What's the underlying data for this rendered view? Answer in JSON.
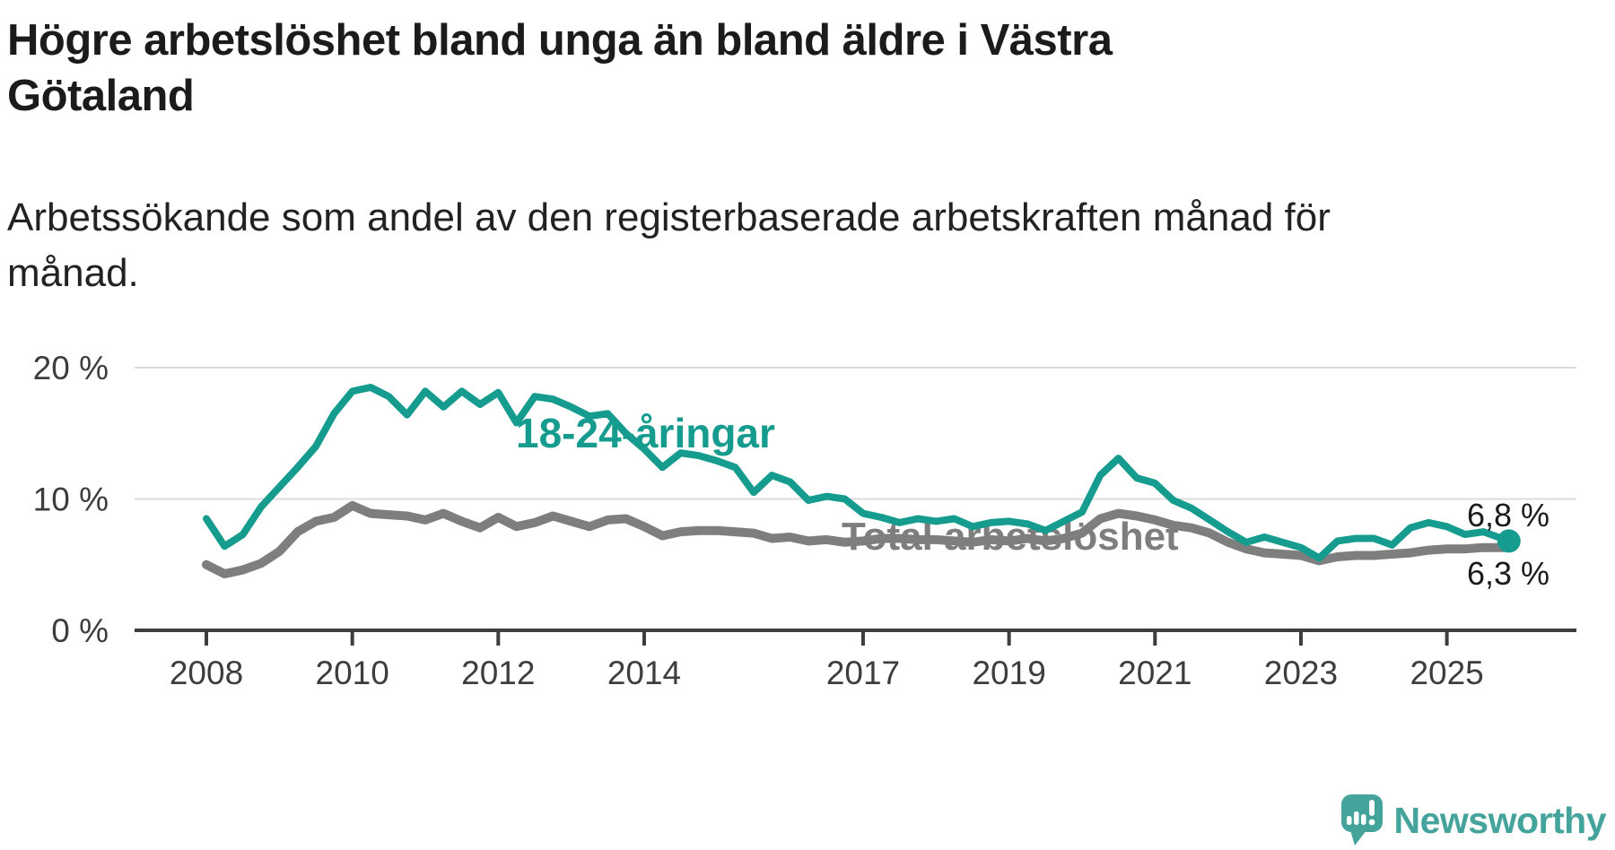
{
  "header": {
    "title": "Högre arbetslöshet bland unga än bland äldre i Västra Götaland",
    "subtitle": "Arbetssökande som andel av den registerbaserade arbetskraften månad för månad."
  },
  "chart_data": {
    "type": "line",
    "unit": "percent of registered labour force",
    "grid": "horizontal-only",
    "legend": "inline-labels",
    "x_range": [
      2008,
      2025.85
    ],
    "y_range": [
      0,
      21.5
    ],
    "x": [
      2008,
      2008.25,
      2008.5,
      2008.75,
      2009,
      2009.25,
      2009.5,
      2009.75,
      2010,
      2010.25,
      2010.5,
      2010.75,
      2011,
      2011.25,
      2011.5,
      2011.75,
      2012,
      2012.25,
      2012.5,
      2012.75,
      2013,
      2013.25,
      2013.5,
      2013.75,
      2014,
      2014.25,
      2014.5,
      2014.75,
      2015,
      2015.25,
      2015.5,
      2015.75,
      2016,
      2016.25,
      2016.5,
      2016.75,
      2017,
      2017.25,
      2017.5,
      2017.75,
      2018,
      2018.25,
      2018.5,
      2018.75,
      2019,
      2019.25,
      2019.5,
      2019.75,
      2020,
      2020.25,
      2020.5,
      2020.75,
      2021,
      2021.25,
      2021.5,
      2021.75,
      2022,
      2022.25,
      2022.5,
      2022.75,
      2023,
      2023.25,
      2023.5,
      2023.75,
      2024,
      2024.25,
      2024.5,
      2024.75,
      2025,
      2025.25,
      2025.5,
      2025.85
    ],
    "series": [
      {
        "name": "18-24-åringar",
        "color": "#169c8f",
        "end_label": "6,8 %",
        "end_dot": true,
        "values": [
          8.5,
          6.4,
          7.3,
          9.4,
          10.9,
          12.4,
          14.0,
          16.5,
          18.2,
          18.5,
          17.8,
          16.4,
          18.2,
          17.0,
          18.2,
          17.2,
          18.1,
          15.8,
          17.8,
          17.6,
          17.0,
          16.3,
          16.5,
          15.0,
          13.8,
          12.4,
          13.5,
          13.3,
          12.9,
          12.4,
          10.5,
          11.8,
          11.3,
          9.9,
          10.2,
          10.0,
          8.9,
          8.6,
          8.2,
          8.5,
          8.3,
          8.5,
          7.9,
          8.2,
          8.3,
          8.1,
          7.6,
          8.3,
          9.0,
          11.8,
          13.1,
          11.6,
          11.2,
          9.9,
          9.3,
          8.4,
          7.5,
          6.7,
          7.1,
          6.7,
          6.3,
          5.5,
          6.8,
          7.0,
          7.0,
          6.5,
          7.8,
          8.2,
          7.9,
          7.3,
          7.5,
          6.8
        ]
      },
      {
        "name": "Total arbetslöshet",
        "color": "#7e7e7e",
        "end_label": "6,3 %",
        "end_dot": false,
        "values": [
          5.0,
          4.3,
          4.6,
          5.1,
          6.0,
          7.5,
          8.3,
          8.6,
          9.5,
          8.9,
          8.8,
          8.7,
          8.4,
          8.9,
          8.3,
          7.8,
          8.6,
          7.9,
          8.2,
          8.7,
          8.3,
          7.9,
          8.4,
          8.5,
          7.9,
          7.2,
          7.5,
          7.6,
          7.6,
          7.5,
          7.4,
          7.0,
          7.1,
          6.8,
          6.9,
          6.7,
          6.8,
          7.0,
          7.0,
          6.9,
          6.9,
          6.8,
          6.7,
          6.9,
          6.8,
          7.0,
          6.8,
          7.0,
          7.4,
          8.5,
          8.9,
          8.7,
          8.4,
          8.0,
          7.8,
          7.4,
          6.7,
          6.2,
          5.9,
          5.8,
          5.7,
          5.3,
          5.6,
          5.7,
          5.7,
          5.8,
          5.9,
          6.1,
          6.2,
          6.2,
          6.3,
          6.3
        ]
      }
    ],
    "x_ticks": [
      {
        "year": 2008,
        "label": "2008"
      },
      {
        "year": 2010,
        "label": "2010"
      },
      {
        "year": 2012,
        "label": "2012"
      },
      {
        "year": 2014,
        "label": "2014"
      },
      {
        "year": 2017,
        "label": "2017"
      },
      {
        "year": 2019,
        "label": "2019"
      },
      {
        "year": 2021,
        "label": "2021"
      },
      {
        "year": 2023,
        "label": "2023"
      },
      {
        "year": 2025,
        "label": "2025"
      }
    ],
    "y_ticks": [
      {
        "value": 0,
        "label": "0 %"
      },
      {
        "value": 10,
        "label": "10 %"
      },
      {
        "value": 20,
        "label": "20 %"
      }
    ]
  },
  "branding": {
    "name": "Newsworthy",
    "logo_icon": "bar-chart-exclamation-speech-bubble-icon",
    "color": "#44a49c"
  },
  "colors": {
    "youth_teal": "#169c8f",
    "total_gray": "#7e7e7e",
    "axis": "#3d3d3d",
    "grid": "#dcdcdc",
    "text": "#1b1b1b",
    "background": "#ffffff"
  }
}
